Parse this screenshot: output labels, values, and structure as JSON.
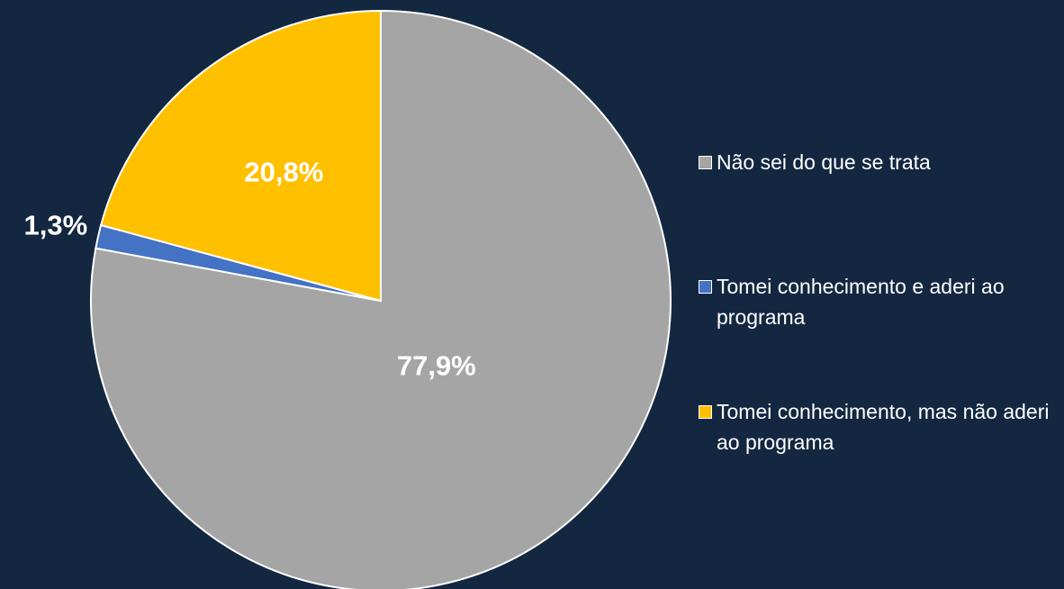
{
  "chart_data": {
    "type": "pie",
    "categories": [
      "Não sei do que se trata",
      "Tomei conhecimento e aderi ao programa",
      "Tomei conhecimento, mas não aderi ao programa"
    ],
    "values": [
      77.9,
      1.3,
      20.8
    ],
    "value_labels": [
      "77,9%",
      "1,3%",
      "20,8%"
    ],
    "colors": [
      "#a5a5a5",
      "#4472c4",
      "#ffc000"
    ],
    "legend": "right"
  }
}
